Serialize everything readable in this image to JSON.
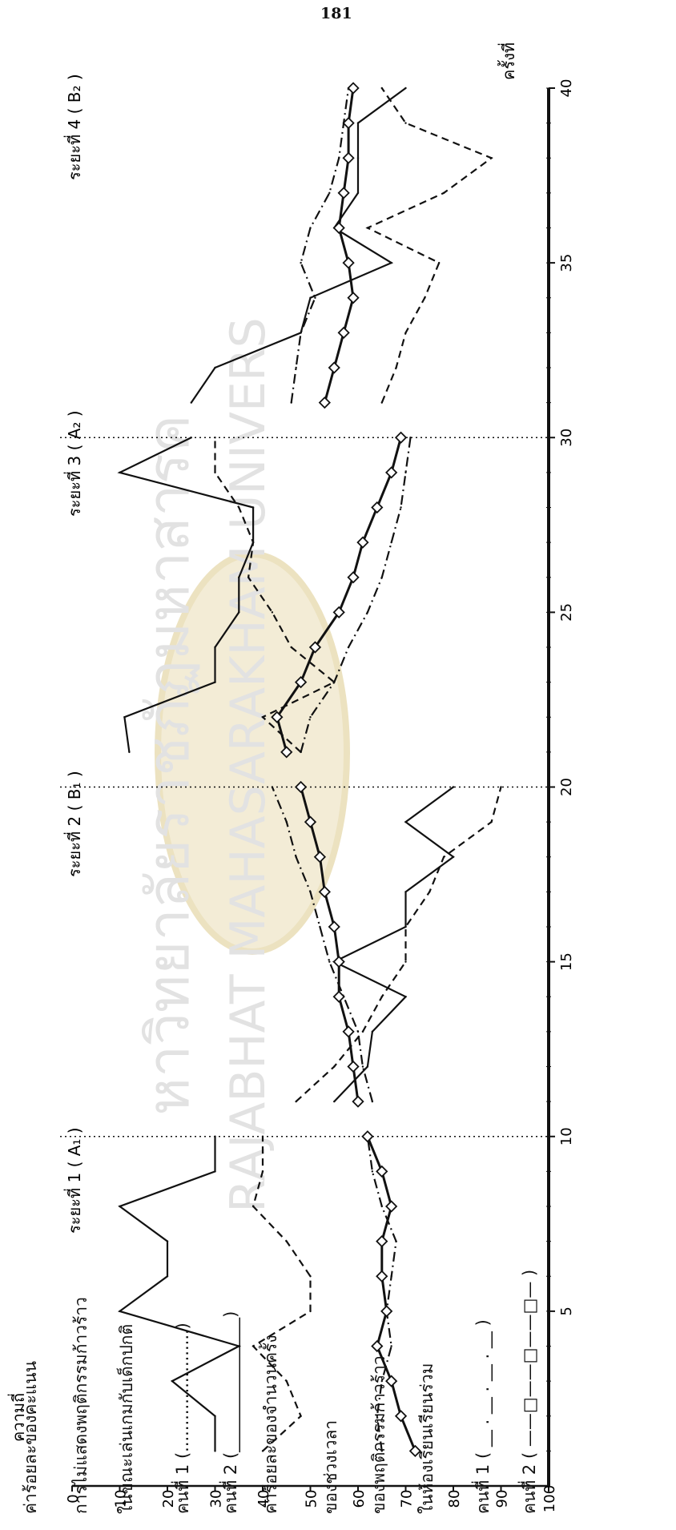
{
  "page_number": "181",
  "watermark": {
    "line1": "หาวิทยาลัยราชภัฏมหาสารค",
    "line2": "RAJABHAT MAHASARAKHAM UNIVERS"
  },
  "legend": {
    "lines": [
      "ค่าร้อยละของคะแนน",
      "การไม่แสดงพฤติกรรมก้าวร้าว",
      "ในขณะเล่นเกมกับเด็กปกติ",
      "คนที่  1  (.......................)",
      "คนที่  2  (________________)",
      "ค่าร้อยละของจำนวนครั้ง",
      "ของช่วงเวลา",
      "ของพฤติกรรมก้าวร้าว",
      "ในห้องเรียนเรียนร่วม",
      "คนที่  1  ( __ . __ . __ . __ )",
      "คนที่  2  ( ——□——□——□— )"
    ]
  },
  "chart_data": {
    "type": "line",
    "ylabel": "ความถี่",
    "xlabel": "ครั้งที่",
    "ylim": [
      0,
      100
    ],
    "xlim": [
      0,
      40
    ],
    "y_ticks": [
      "0",
      "10",
      "20",
      "30",
      "40",
      "50",
      "60",
      "70",
      "80",
      "90",
      "100"
    ],
    "x_ticks": [
      "5",
      "10",
      "15",
      "20",
      "25",
      "30",
      "35",
      "40"
    ],
    "phase_labels": [
      "ระยะที่  1 ( A₁ )",
      "ระยะที่  2  ( B₁ )",
      "ระยะที่  3 ( A₂ )",
      "ระยะที่  4 ( B₂ )"
    ],
    "phase_dividers": [
      10,
      20,
      30
    ],
    "series": [
      {
        "name": "คนที่ 1 (การไม่แสดงพฤติกรรมก้าวร้าว)",
        "style": "dashed",
        "x": [
          1,
          2,
          3,
          4,
          5,
          6,
          7,
          8,
          9,
          10,
          11,
          12,
          13,
          14,
          15,
          16,
          17,
          18,
          19,
          20,
          21,
          22,
          23,
          24,
          25,
          26,
          27,
          28,
          29,
          30,
          31,
          32,
          33,
          34,
          35,
          36,
          37,
          38,
          39,
          40
        ],
        "y": [
          40,
          48,
          45,
          38,
          50,
          50,
          45,
          38,
          40,
          40,
          47,
          55,
          61,
          65,
          70,
          70,
          75,
          78,
          88,
          90,
          48,
          40,
          55,
          46,
          42,
          37,
          38,
          35,
          30,
          30,
          65,
          68,
          70,
          74,
          77,
          62,
          78,
          88,
          70,
          65
        ]
      },
      {
        "name": "คนที่ 2 (การไม่แสดงพฤติกรรมก้าวร้าว)",
        "style": "solid",
        "x": [
          1,
          2,
          3,
          4,
          5,
          6,
          7,
          8,
          9,
          10,
          11,
          12,
          13,
          14,
          15,
          16,
          17,
          18,
          19,
          20,
          21,
          22,
          23,
          24,
          25,
          26,
          27,
          28,
          29,
          30,
          31,
          32,
          33,
          34,
          35,
          36,
          37,
          38,
          39,
          40
        ],
        "y": [
          30,
          30,
          21,
          35,
          10,
          20,
          20,
          10,
          30,
          30,
          55,
          62,
          63,
          70,
          55,
          70,
          70,
          80,
          70,
          80,
          12,
          11,
          30,
          30,
          35,
          35,
          38,
          38,
          10,
          25,
          25,
          30,
          48,
          50,
          67,
          55,
          60,
          60,
          60,
          70
        ]
      },
      {
        "name": "คนที่ 1 (พฤติกรรมก้าวร้าวในห้องเรียนเรียนร่วม)",
        "style": "dash-dot",
        "x": [
          1,
          2,
          3,
          4,
          5,
          6,
          7,
          8,
          9,
          10,
          11,
          12,
          13,
          14,
          15,
          16,
          17,
          18,
          19,
          20,
          21,
          22,
          23,
          24,
          25,
          26,
          27,
          28,
          29,
          30,
          31,
          32,
          33,
          34,
          35,
          36,
          37,
          38,
          39,
          40
        ],
        "y": [
          65,
          64,
          65,
          67,
          66,
          67,
          68,
          65,
          63,
          62,
          63,
          61,
          60,
          57,
          54,
          52,
          50,
          47,
          45,
          42,
          48,
          50,
          55,
          58,
          62,
          65,
          67,
          69,
          70,
          71,
          46,
          47,
          48,
          51,
          48,
          50,
          54,
          56,
          57,
          58
        ]
      },
      {
        "name": "คนที่ 2 (พฤติกรรมก้าวร้าวในห้องเรียนเรียนร่วม)",
        "style": "solid-square",
        "x": [
          1,
          2,
          3,
          4,
          5,
          6,
          7,
          8,
          9,
          10,
          11,
          12,
          13,
          14,
          15,
          16,
          17,
          18,
          19,
          20,
          21,
          22,
          23,
          24,
          25,
          26,
          27,
          28,
          29,
          30,
          31,
          32,
          33,
          34,
          35,
          36,
          37,
          38,
          39,
          40
        ],
        "y": [
          72,
          69,
          67,
          64,
          66,
          65,
          65,
          67,
          65,
          62,
          60,
          59,
          58,
          56,
          56,
          55,
          53,
          52,
          50,
          48,
          45,
          43,
          48,
          51,
          56,
          59,
          61,
          64,
          67,
          69,
          53,
          55,
          57,
          59,
          58,
          56,
          57,
          58,
          58,
          59
        ]
      }
    ]
  }
}
